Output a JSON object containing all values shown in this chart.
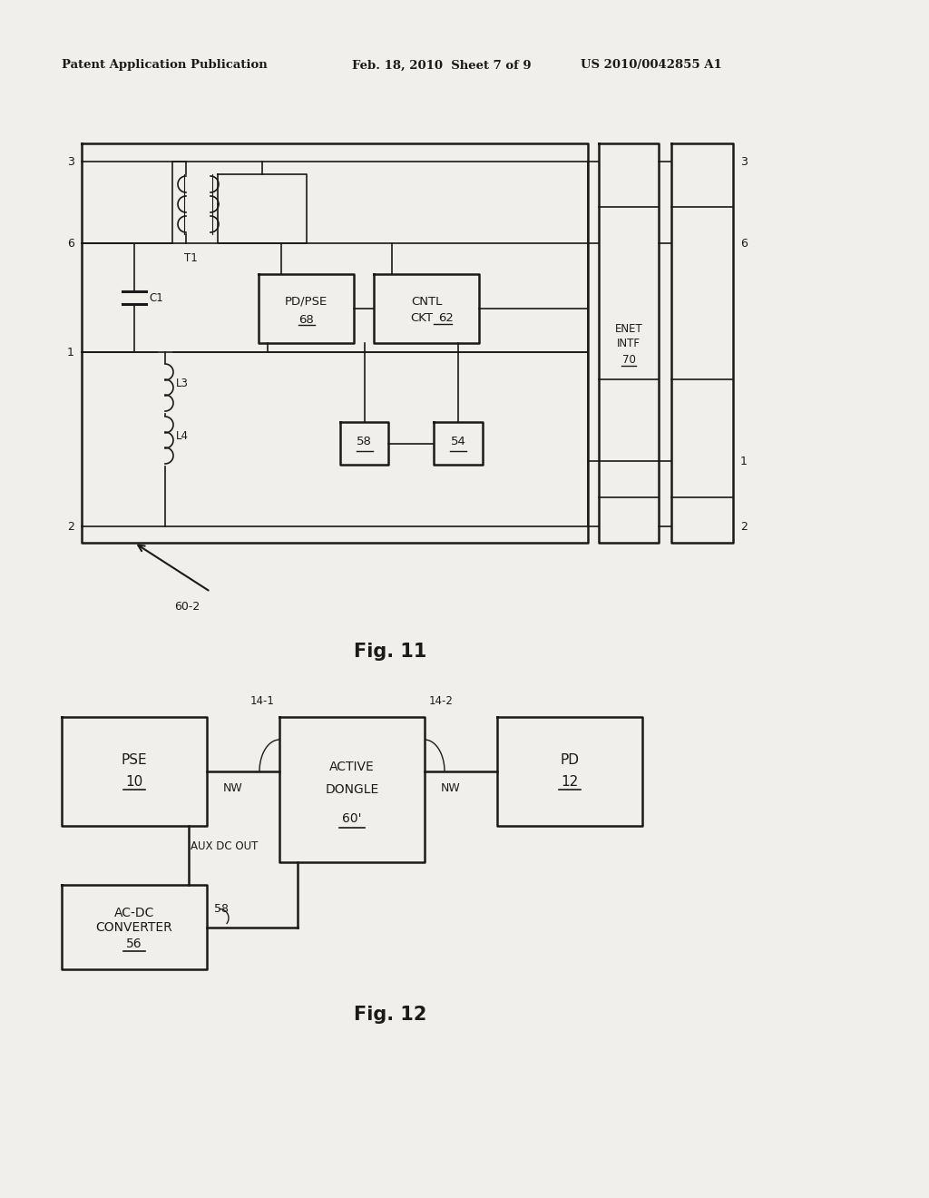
{
  "bg_color": "#f0efeb",
  "header_left": "Patent Application Publication",
  "header_mid": "Feb. 18, 2010  Sheet 7 of 9",
  "header_right": "US 2010/0042855 A1",
  "fig11_label": "Fig. 11",
  "fig12_label": "Fig. 12",
  "fig11_annotation": "60-2",
  "lw_main": 1.8,
  "lw_thin": 1.2,
  "black": "#1a1a1a"
}
